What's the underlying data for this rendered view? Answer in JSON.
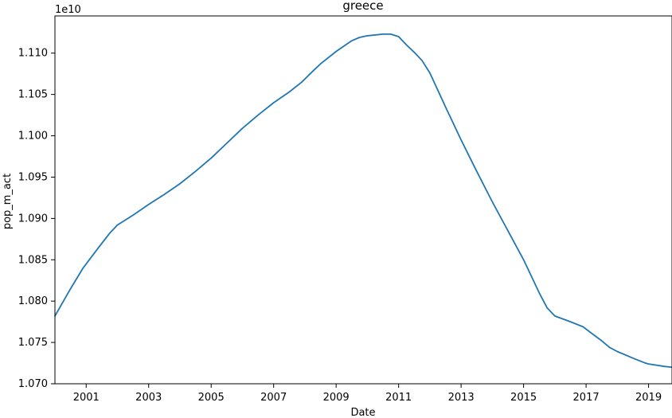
{
  "chart_data": {
    "type": "line",
    "title": "greece",
    "xlabel": "Date",
    "ylabel": "pop_m_act",
    "y_offset_label": "1e10",
    "x_range": [
      2000.0,
      2019.75
    ],
    "ylim": [
      1.07,
      1.1145
    ],
    "x_ticks": [
      2001,
      2003,
      2005,
      2007,
      2009,
      2011,
      2013,
      2015,
      2017,
      2019
    ],
    "y_ticks": [
      "1.070",
      "1.075",
      "1.080",
      "1.085",
      "1.090",
      "1.095",
      "1.100",
      "1.105",
      "1.110"
    ],
    "grid": false,
    "series": [
      {
        "color": "#1f77b4",
        "x": [
          2000.0,
          2000.5,
          2000.9,
          2001.4,
          2001.75,
          2002.0,
          2002.5,
          2003.0,
          2003.5,
          2004.0,
          2004.5,
          2005.0,
          2005.5,
          2006.0,
          2006.5,
          2007.0,
          2007.5,
          2007.9,
          2008.25,
          2008.5,
          2009.0,
          2009.5,
          2009.75,
          2010.0,
          2010.5,
          2010.75,
          2011.0,
          2011.25,
          2011.5,
          2011.75,
          2012.0,
          2012.5,
          2013.0,
          2013.5,
          2014.0,
          2014.5,
          2015.0,
          2015.5,
          2015.75,
          2016.0,
          2016.5,
          2016.9,
          2017.25,
          2017.5,
          2017.75,
          2018.0,
          2018.5,
          2018.9,
          2019.0,
          2019.5,
          2019.75
        ],
        "y": [
          1.0782,
          1.0815,
          1.084,
          1.0865,
          1.0882,
          1.0892,
          1.0904,
          1.0917,
          1.0929,
          1.0942,
          1.0957,
          1.0973,
          1.0991,
          1.1009,
          1.1025,
          1.104,
          1.1053,
          1.1065,
          1.1078,
          1.1087,
          1.1102,
          1.1115,
          1.1119,
          1.1121,
          1.1123,
          1.1123,
          1.112,
          1.111,
          1.1101,
          1.1091,
          1.1076,
          1.1035,
          1.0995,
          1.0957,
          1.092,
          1.0885,
          1.085,
          1.081,
          1.0792,
          1.0782,
          1.0775,
          1.0769,
          1.0759,
          1.0752,
          1.0744,
          1.0739,
          1.0731,
          1.0725,
          1.0724,
          1.0721,
          1.072
        ]
      }
    ]
  }
}
